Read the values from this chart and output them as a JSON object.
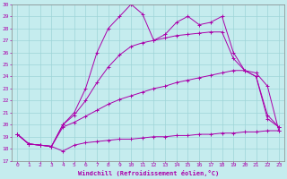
{
  "xlabel": "Windchill (Refroidissement éolien,°C)",
  "xlim": [
    -0.5,
    23.5
  ],
  "ylim": [
    17,
    30
  ],
  "yticks": [
    17,
    18,
    19,
    20,
    21,
    22,
    23,
    24,
    25,
    26,
    27,
    28,
    29,
    30
  ],
  "xticks": [
    0,
    1,
    2,
    3,
    4,
    5,
    6,
    7,
    8,
    9,
    10,
    11,
    12,
    13,
    14,
    15,
    16,
    17,
    18,
    19,
    20,
    21,
    22,
    23
  ],
  "background_color": "#c5ecee",
  "line_color": "#aa00aa",
  "grid_color": "#9dd4d8",
  "lines": [
    {
      "x": [
        0,
        1,
        2,
        3,
        4,
        5,
        6,
        7,
        8,
        9,
        10,
        11,
        12,
        13,
        14,
        15,
        16,
        17,
        18,
        19,
        20,
        21,
        22,
        23
      ],
      "y": [
        19.2,
        18.4,
        18.3,
        18.2,
        17.8,
        18.3,
        18.5,
        18.6,
        18.7,
        18.8,
        18.8,
        18.9,
        19.0,
        19.0,
        19.1,
        19.1,
        19.2,
        19.2,
        19.3,
        19.3,
        19.4,
        19.4,
        19.5,
        19.5
      ]
    },
    {
      "x": [
        0,
        1,
        2,
        3,
        4,
        5,
        6,
        7,
        8,
        9,
        10,
        11,
        12,
        13,
        14,
        15,
        16,
        17,
        18,
        19,
        20,
        21,
        22,
        23
      ],
      "y": [
        19.2,
        18.4,
        18.3,
        18.2,
        19.8,
        20.2,
        20.7,
        21.2,
        21.7,
        22.1,
        22.4,
        22.7,
        23.0,
        23.2,
        23.5,
        23.7,
        23.9,
        24.1,
        24.3,
        24.5,
        24.5,
        24.3,
        23.2,
        19.5
      ]
    },
    {
      "x": [
        0,
        1,
        2,
        3,
        4,
        5,
        6,
        7,
        8,
        9,
        10,
        11,
        12,
        13,
        14,
        15,
        16,
        17,
        18,
        19,
        20,
        21,
        22,
        23
      ],
      "y": [
        19.2,
        18.4,
        18.3,
        18.2,
        20.0,
        20.8,
        22.0,
        23.5,
        24.8,
        25.8,
        26.5,
        26.8,
        27.0,
        27.2,
        27.4,
        27.5,
        27.6,
        27.7,
        27.7,
        25.5,
        24.5,
        24.0,
        20.8,
        19.8
      ]
    },
    {
      "x": [
        0,
        1,
        2,
        3,
        4,
        5,
        6,
        7,
        8,
        9,
        10,
        11,
        12,
        13,
        14,
        15,
        16,
        17,
        18,
        19,
        20,
        21,
        22,
        23
      ],
      "y": [
        19.2,
        18.4,
        18.3,
        18.2,
        20.0,
        21.0,
        23.0,
        26.0,
        28.0,
        29.0,
        30.0,
        29.2,
        27.0,
        27.5,
        28.5,
        29.0,
        28.3,
        28.5,
        29.0,
        26.0,
        24.5,
        24.0,
        20.5,
        19.8
      ]
    }
  ]
}
